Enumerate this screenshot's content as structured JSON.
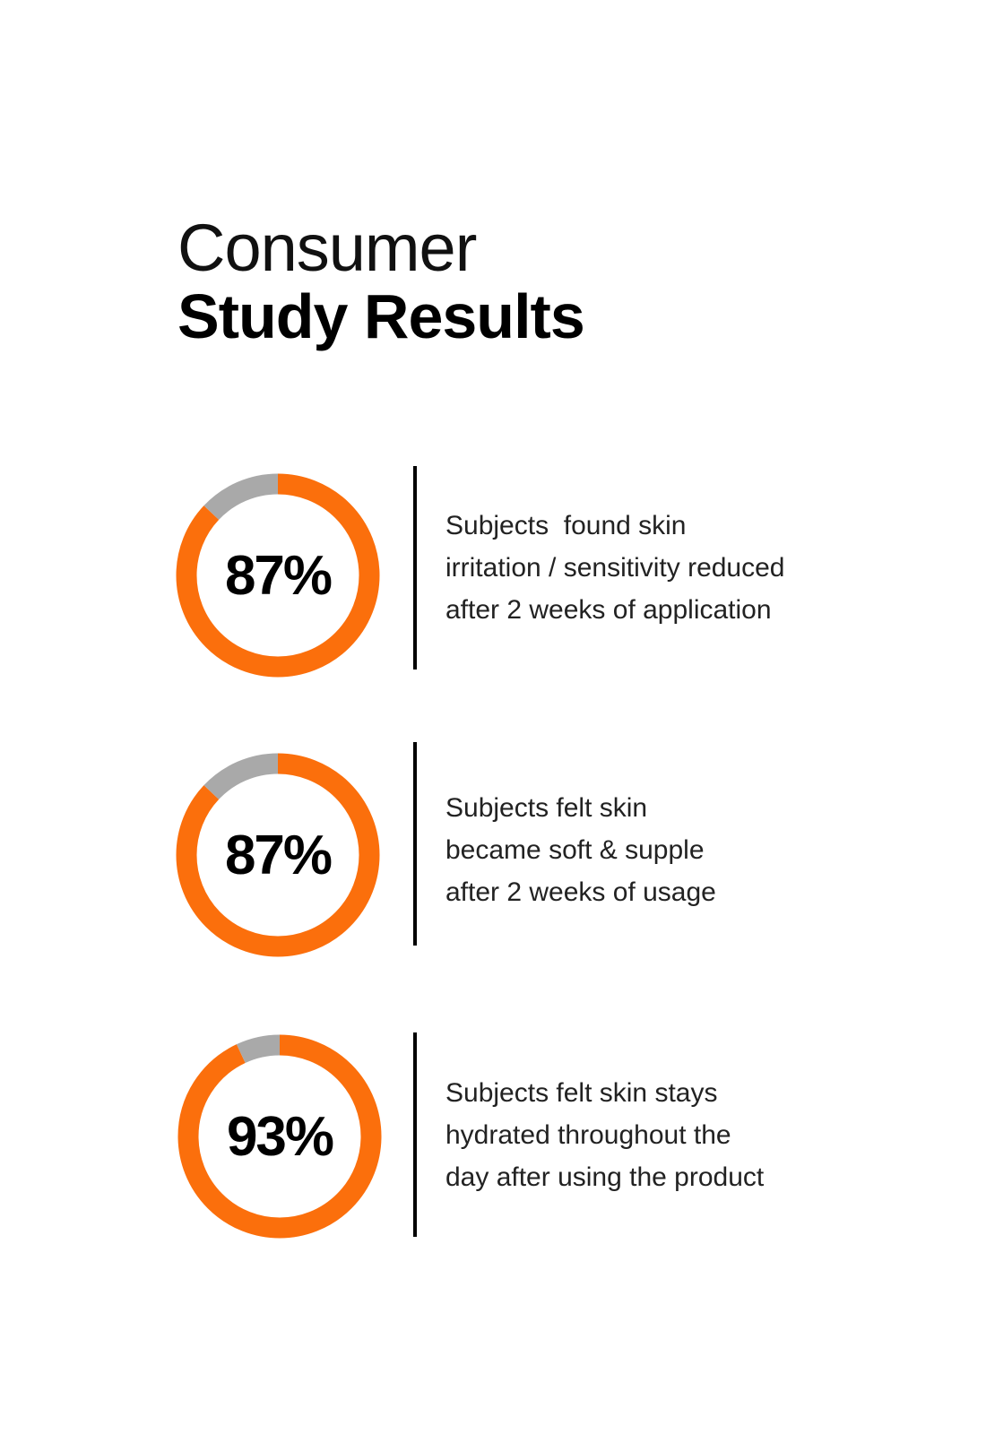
{
  "title": {
    "line1": "Consumer",
    "line2": "Study Results"
  },
  "colors": {
    "accent": "#fb6f0c",
    "remainder": "#a9a9a9",
    "text": "#111111"
  },
  "chart_data": [
    {
      "type": "pie",
      "variant": "donut",
      "values": [
        87,
        13
      ],
      "label": "87%",
      "description": [
        "Subjects  found skin",
        "irritation / sensitivity reduced",
        "after 2 weeks of application"
      ]
    },
    {
      "type": "pie",
      "variant": "donut",
      "values": [
        87,
        13
      ],
      "label": "87%",
      "description": [
        "Subjects felt skin",
        "became soft & supple",
        "after 2 weeks of usage"
      ]
    },
    {
      "type": "pie",
      "variant": "donut",
      "values": [
        93,
        7
      ],
      "label": "93%",
      "description": [
        "Subjects felt skin stays",
        "hydrated throughout the",
        "day after using the product"
      ]
    }
  ]
}
